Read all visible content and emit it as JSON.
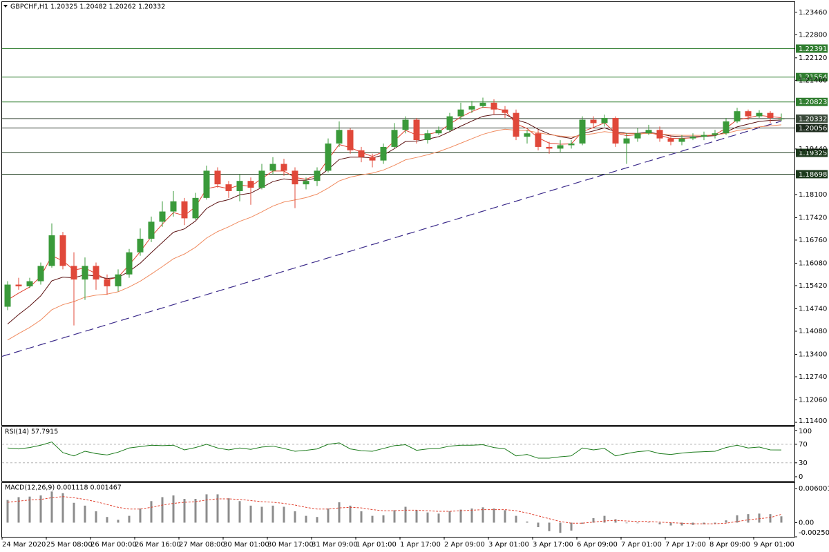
{
  "chart_data": [
    {
      "type": "candlestick",
      "title": "GBPCHF,H1  1.20325 1.20482 1.20262 1.20332",
      "categories": [
        "24 Mar 2020",
        null,
        null,
        null,
        "25 Mar 08:00",
        null,
        null,
        null,
        "26 Mar 00:00",
        null,
        null,
        null,
        "26 Mar 16:00",
        null,
        null,
        null,
        "27 Mar 08:00",
        null,
        null,
        null,
        "30 Mar 01:00",
        null,
        null,
        null,
        "30 Mar 17:00",
        null,
        null,
        null,
        "31 Mar 09:00",
        null,
        null,
        null,
        "1 Apr 01:00",
        null,
        null,
        null,
        "1 Apr 17:00",
        null,
        null,
        null,
        "2 Apr 09:00",
        null,
        null,
        null,
        "3 Apr 01:00",
        null,
        null,
        null,
        "3 Apr 17:00",
        null,
        null,
        null,
        "6 Apr 09:00",
        null,
        null,
        null,
        "7 Apr 01:00",
        null,
        null,
        null,
        "7 Apr 17:00",
        null,
        null,
        null,
        "8 Apr 09:00",
        null,
        null,
        null,
        "9 Apr 01:00",
        null,
        null
      ],
      "open": [
        1.148,
        1.1545,
        1.154,
        1.1555,
        1.16,
        1.169,
        1.16,
        1.156,
        1.16,
        1.156,
        1.154,
        1.1575,
        1.164,
        1.168,
        1.173,
        1.176,
        1.179,
        1.174,
        1.18,
        1.188,
        1.184,
        1.182,
        1.185,
        1.183,
        1.188,
        1.19,
        1.188,
        1.184,
        1.185,
        1.188,
        1.196,
        1.2,
        1.194,
        1.192,
        1.191,
        1.195,
        1.2,
        1.203,
        1.197,
        1.199,
        1.2,
        1.204,
        1.206,
        1.207,
        1.208,
        1.206,
        1.205,
        1.198,
        1.199,
        1.195,
        1.1945,
        1.1955,
        1.196,
        1.203,
        1.202,
        1.2035,
        1.196,
        1.1975,
        1.199,
        1.2,
        1.1975,
        1.1965,
        1.1975,
        1.198,
        1.1985,
        1.199,
        1.2025,
        1.2055,
        1.204,
        1.205,
        1.20325
      ],
      "high": [
        1.1555,
        1.1565,
        1.1565,
        1.161,
        1.1725,
        1.17,
        1.164,
        1.1625,
        1.161,
        1.1575,
        1.159,
        1.165,
        1.171,
        1.1745,
        1.179,
        1.182,
        1.18,
        1.1815,
        1.1895,
        1.189,
        1.185,
        1.187,
        1.186,
        1.19,
        1.192,
        1.1915,
        1.189,
        1.186,
        1.189,
        1.1975,
        1.2025,
        1.2005,
        1.195,
        1.193,
        1.196,
        1.202,
        1.204,
        1.2035,
        1.2,
        1.201,
        1.205,
        1.208,
        1.2085,
        1.2095,
        1.209,
        1.207,
        1.206,
        1.2,
        1.2,
        1.1965,
        1.197,
        1.197,
        1.204,
        1.204,
        1.2045,
        1.204,
        1.199,
        1.2005,
        1.2015,
        1.201,
        1.1985,
        1.1985,
        1.199,
        1.1995,
        1.2,
        1.2035,
        1.2065,
        1.206,
        1.2058,
        1.2055,
        1.20482
      ],
      "low": [
        1.147,
        1.153,
        1.1535,
        1.1545,
        1.1595,
        1.159,
        1.1425,
        1.15,
        1.153,
        1.1515,
        1.1525,
        1.1565,
        1.163,
        1.167,
        1.1715,
        1.1745,
        1.172,
        1.1735,
        1.1795,
        1.183,
        1.18,
        1.179,
        1.178,
        1.1825,
        1.187,
        1.1865,
        1.177,
        1.1825,
        1.1835,
        1.1875,
        1.195,
        1.193,
        1.1905,
        1.189,
        1.19,
        1.1945,
        1.199,
        1.196,
        1.196,
        1.1985,
        1.1995,
        1.203,
        1.205,
        1.2065,
        1.2045,
        1.2035,
        1.197,
        1.196,
        1.194,
        1.193,
        1.1935,
        1.1945,
        1.1955,
        1.2005,
        1.201,
        1.195,
        1.19,
        1.1965,
        1.1985,
        1.1965,
        1.1955,
        1.1955,
        1.197,
        1.197,
        1.1975,
        1.1985,
        1.202,
        1.203,
        1.2035,
        1.202,
        1.20262
      ],
      "close": [
        1.1545,
        1.154,
        1.1555,
        1.16,
        1.169,
        1.16,
        1.156,
        1.16,
        1.156,
        1.154,
        1.1575,
        1.164,
        1.168,
        1.173,
        1.176,
        1.179,
        1.174,
        1.18,
        1.188,
        1.184,
        1.182,
        1.185,
        1.183,
        1.188,
        1.19,
        1.188,
        1.184,
        1.185,
        1.188,
        1.196,
        1.2,
        1.194,
        1.192,
        1.191,
        1.195,
        1.2,
        1.203,
        1.197,
        1.199,
        1.2,
        1.204,
        1.206,
        1.207,
        1.208,
        1.206,
        1.205,
        1.198,
        1.199,
        1.195,
        1.1945,
        1.1955,
        1.196,
        1.203,
        1.202,
        1.2035,
        1.196,
        1.1975,
        1.199,
        1.2,
        1.1975,
        1.1965,
        1.1975,
        1.198,
        1.1985,
        1.199,
        1.2025,
        1.2055,
        1.204,
        1.205,
        1.2035,
        1.20332
      ],
      "up_color": "#3a9a3a",
      "down_color": "#e0483a",
      "series": [
        {
          "color": "#e0412f",
          "values": [
            1.15,
            1.152,
            1.1538,
            1.1569,
            1.163,
            1.1615,
            1.1588,
            1.1594,
            1.1577,
            1.1559,
            1.1567,
            1.1603,
            1.1642,
            1.1686,
            1.1723,
            1.1757,
            1.1748,
            1.1774,
            1.1827,
            1.1834,
            1.1827,
            1.1838,
            1.1834,
            1.1857,
            1.1879,
            1.1879,
            1.186,
            1.1855,
            1.1867,
            1.1914,
            1.1957,
            1.1948,
            1.1934,
            1.1922,
            1.1936,
            1.1968,
            1.1999,
            1.1985,
            1.1987,
            1.1994,
            1.2017,
            1.2038,
            1.2054,
            1.2067,
            1.2064,
            1.2057,
            1.2018,
            1.2004,
            1.1977,
            1.1961,
            1.1958,
            1.1959,
            1.1995,
            1.2007,
            1.2021,
            1.1991,
            1.1983,
            1.1986,
            1.1993,
            1.1984,
            1.1975,
            1.1975,
            1.1977,
            1.1981,
            1.1986,
            1.2005,
            1.203,
            1.2035,
            1.2043,
            1.2039,
            1.2036
          ]
        },
        {
          "color": "#5a1010",
          "values": [
            1.1429,
            1.1457,
            1.1482,
            1.1512,
            1.1556,
            1.1567,
            1.1565,
            1.1574,
            1.157,
            1.1563,
            1.1566,
            1.1584,
            1.1608,
            1.1639,
            1.1669,
            1.1699,
            1.1709,
            1.1732,
            1.1769,
            1.1787,
            1.1795,
            1.1809,
            1.1814,
            1.1831,
            1.1848,
            1.1856,
            1.1852,
            1.1852,
            1.1859,
            1.1884,
            1.1913,
            1.192,
            1.192,
            1.1918,
            1.1926,
            1.1945,
            1.1966,
            1.1967,
            1.1973,
            1.198,
            1.1995,
            1.2011,
            1.2026,
            1.204,
            1.2045,
            1.2046,
            1.203,
            1.202,
            1.2002,
            1.1988,
            1.198,
            1.1975,
            1.1989,
            1.1997,
            1.2006,
            1.1995,
            1.199,
            1.199,
            1.1993,
            1.1988,
            1.1982,
            1.198,
            1.198,
            1.1981,
            1.1983,
            1.1994,
            1.2009,
            1.2017,
            1.2025,
            1.2028,
            1.2029
          ]
        },
        {
          "color": "#f08a5e",
          "values": [
            1.1382,
            1.1401,
            1.1419,
            1.1441,
            1.1471,
            1.1486,
            1.1495,
            1.1508,
            1.1514,
            1.1517,
            1.1524,
            1.1538,
            1.1555,
            1.1576,
            1.1598,
            1.1621,
            1.1635,
            1.1655,
            1.1682,
            1.1701,
            1.1715,
            1.1731,
            1.1743,
            1.1759,
            1.1776,
            1.1788,
            1.1794,
            1.1801,
            1.1811,
            1.1829,
            1.185,
            1.1861,
            1.1868,
            1.1873,
            1.1882,
            1.1896,
            1.1912,
            1.1919,
            1.1927,
            1.1936,
            1.1948,
            1.1961,
            1.1974,
            1.1987,
            1.1996,
            1.2002,
            1.1999,
            1.1998,
            1.1992,
            1.1986,
            1.1982,
            1.1979,
            1.1985,
            1.1989,
            1.1995,
            1.1991,
            1.1989,
            1.1989,
            1.199,
            1.1988,
            1.1985,
            1.1984,
            1.1984,
            1.1984,
            1.1985,
            1.199,
            1.1998,
            1.2003,
            1.2009,
            1.2012,
            1.2015
          ]
        }
      ],
      "levels": [
        {
          "value": 1.22391,
          "color": "#2f7d2f"
        },
        {
          "value": 1.21554,
          "color": "#2f7d2f"
        },
        {
          "value": 1.20823,
          "color": "#2f7d2f"
        },
        {
          "value": 1.20332,
          "color": "#3a4a3a"
        },
        {
          "value": 1.20056,
          "color": "#1d2b1d"
        },
        {
          "value": 1.19325,
          "color": "#1d3a1d"
        },
        {
          "value": 1.18698,
          "color": "#1d3a1d"
        }
      ],
      "trendline": {
        "values": [
          1.1334,
          1.2026
        ],
        "color": "#3b2a8a"
      },
      "ylim": [
        1.1132,
        1.2376
      ],
      "yticks": [
        {
          "value": 1.2346,
          "label": "1.23460"
        },
        {
          "value": 1.228,
          "label": "1.22800"
        },
        {
          "value": 1.2212,
          "label": "1.22120"
        },
        {
          "value": 1.2146,
          "label": "1.21460"
        },
        {
          "value": 1.1944,
          "label": "1.19440"
        },
        {
          "value": 1.181,
          "label": "1.18100"
        },
        {
          "value": 1.1742,
          "label": "1.17420"
        },
        {
          "value": 1.1676,
          "label": "1.16760"
        },
        {
          "value": 1.1608,
          "label": "1.16080"
        },
        {
          "value": 1.1542,
          "label": "1.15420"
        },
        {
          "value": 1.1474,
          "label": "1.14740"
        },
        {
          "value": 1.1408,
          "label": "1.14080"
        },
        {
          "value": 1.134,
          "label": "1.13400"
        },
        {
          "value": 1.1274,
          "label": "1.12740"
        },
        {
          "value": 1.1206,
          "label": "1.12060"
        },
        {
          "value": 1.114,
          "label": "1.11400"
        }
      ]
    },
    {
      "type": "line",
      "title": "RSI(14) 57.7915",
      "color": "#1a7a1a",
      "values": [
        62,
        60,
        63,
        68,
        75,
        52,
        45,
        55,
        50,
        47,
        53,
        62,
        65,
        68,
        67,
        68,
        58,
        63,
        70,
        62,
        58,
        62,
        59,
        64,
        66,
        61,
        55,
        57,
        60,
        70,
        73,
        60,
        56,
        55,
        61,
        67,
        69,
        57,
        60,
        61,
        66,
        68,
        68,
        69,
        63,
        60,
        45,
        48,
        40,
        40,
        43,
        45,
        62,
        58,
        61,
        45,
        50,
        54,
        56,
        50,
        48,
        51,
        53,
        54,
        55,
        63,
        68,
        62,
        64,
        58,
        57.7915
      ],
      "levels": [
        70,
        30
      ],
      "ylim": [
        -9,
        107
      ],
      "yticks": [
        100,
        70,
        30,
        0
      ]
    },
    {
      "type": "bar",
      "title": "MACD(12,26,9) 0.001118 0.001467",
      "color": "#8c8c8c",
      "values": [
        0.004,
        0.0045,
        0.0046,
        0.0048,
        0.0055,
        0.0052,
        0.0035,
        0.003,
        0.002,
        0.001,
        0.0005,
        0.0012,
        0.0025,
        0.0038,
        0.0045,
        0.0048,
        0.0042,
        0.0042,
        0.005,
        0.005,
        0.0043,
        0.0038,
        0.003,
        0.0028,
        0.003,
        0.0028,
        0.002,
        0.0012,
        0.001,
        0.0025,
        0.0036,
        0.003,
        0.002,
        0.0012,
        0.0013,
        0.0022,
        0.0028,
        0.0022,
        0.0018,
        0.0016,
        0.002,
        0.0023,
        0.0025,
        0.0027,
        0.0025,
        0.0022,
        0.0012,
        0.0002,
        -0.0008,
        -0.0015,
        -0.0018,
        -0.0014,
        -0.0002,
        0.0008,
        0.0012,
        0.0006,
        -0.0001,
        -0.0001,
        0.0,
        -0.0003,
        -0.0005,
        -0.0005,
        -0.0004,
        -0.0003,
        -0.0002,
        0.0004,
        0.0013,
        0.0015,
        0.0016,
        0.0015,
        0.001118
      ],
      "signal": {
        "color": "#e0412f",
        "values": [
          0.0036,
          0.0038,
          0.004,
          0.0041,
          0.0044,
          0.0046,
          0.0044,
          0.0041,
          0.0037,
          0.0032,
          0.0027,
          0.0024,
          0.0024,
          0.0027,
          0.0031,
          0.0034,
          0.0036,
          0.0037,
          0.004,
          0.0042,
          0.0042,
          0.0041,
          0.0039,
          0.0037,
          0.0036,
          0.0034,
          0.0031,
          0.0027,
          0.0024,
          0.0024,
          0.0026,
          0.0027,
          0.0026,
          0.0023,
          0.0021,
          0.0021,
          0.0022,
          0.0022,
          0.0021,
          0.002,
          0.002,
          0.0021,
          0.0022,
          0.0023,
          0.0023,
          0.0023,
          0.0021,
          0.0017,
          0.0012,
          0.0007,
          0.0002,
          -0.0001,
          -0.0001,
          0.0001,
          0.0003,
          0.0004,
          0.0003,
          0.0002,
          0.0002,
          0.0001,
          0.0,
          -0.0001,
          -0.0002,
          -0.0002,
          -0.0002,
          -0.0001,
          0.0002,
          0.0005,
          0.0007,
          0.0009,
          0.001467
        ]
      },
      "ylim": [
        -0.002504,
        0.007
      ],
      "yticks": [
        0.006001,
        {
          "value": 0,
          "label": "0.00"
        },
        -0.002504
      ]
    }
  ]
}
